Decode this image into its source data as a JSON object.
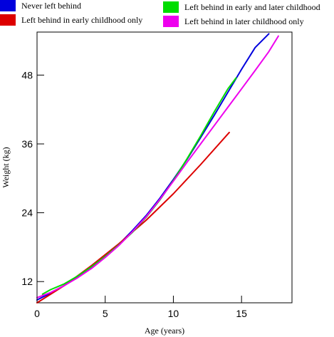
{
  "chart_data": {
    "type": "line",
    "title": "",
    "xlabel": "Age (years)",
    "ylabel": "Weight (kg)",
    "xlim": [
      0,
      18.7
    ],
    "ylim": [
      8.3,
      55.5
    ],
    "xticks": [
      0,
      5,
      10,
      15
    ],
    "yticks": [
      12,
      24,
      36,
      48
    ],
    "xtick_labels": [
      "0",
      "5",
      "10",
      "15"
    ],
    "ytick_labels": [
      "12",
      "24",
      "36",
      "48"
    ],
    "grid": false,
    "legend_placement": "top",
    "series": [
      {
        "name": "Never left behind",
        "color": "#0000dd",
        "x": [
          0,
          1,
          2,
          3,
          4,
          5,
          6,
          7,
          8,
          9,
          10,
          11,
          12,
          13,
          14,
          15,
          16,
          17
        ],
        "y": [
          8.8,
          10.0,
          11.3,
          12.8,
          14.5,
          16.4,
          18.5,
          20.9,
          23.5,
          26.5,
          29.8,
          33.3,
          37.1,
          41.0,
          45.0,
          49.0,
          52.8,
          55.2
        ]
      },
      {
        "name": "Left behind in early childhood only",
        "color": "#dd0000",
        "x": [
          0,
          2,
          4,
          6,
          8,
          10,
          12,
          14.1
        ],
        "y": [
          8.3,
          11.3,
          14.8,
          18.6,
          22.7,
          27.3,
          32.4,
          38.0
        ]
      },
      {
        "name": "Left behind in early and later childhood",
        "color": "#00dd00",
        "x": [
          0.4,
          1,
          2,
          3,
          4,
          5,
          6,
          7,
          8,
          9,
          10,
          11,
          12,
          13,
          14,
          14.6
        ],
        "y": [
          9.8,
          10.6,
          11.6,
          13.0,
          14.6,
          16.4,
          18.4,
          20.6,
          23.2,
          26.2,
          29.6,
          33.4,
          37.4,
          41.6,
          45.6,
          47.5
        ]
      },
      {
        "name": "Left behind in later childhood only",
        "color": "#ee00ee",
        "x": [
          0,
          1,
          2,
          3,
          4,
          5,
          6,
          7,
          8,
          9,
          10,
          11,
          12,
          13,
          14,
          15,
          16,
          17,
          17.7
        ],
        "y": [
          9.2,
          10.1,
          11.3,
          12.7,
          14.3,
          16.2,
          18.3,
          20.7,
          23.3,
          26.3,
          29.5,
          32.8,
          36.0,
          39.2,
          42.4,
          45.6,
          48.8,
          52.1,
          54.8
        ]
      }
    ]
  }
}
